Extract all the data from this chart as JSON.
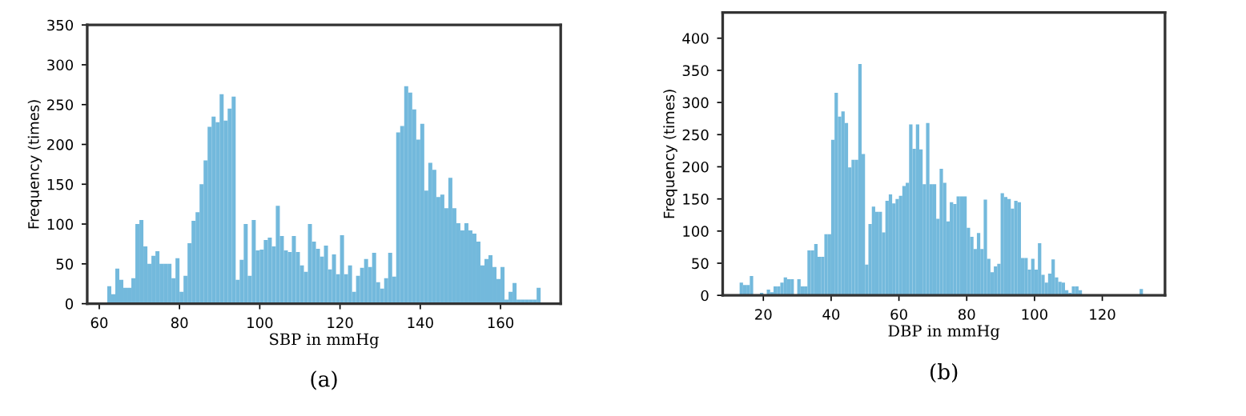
{
  "chart_data": [
    {
      "type": "histogram",
      "xlabel": "SBP in mmHg",
      "ylabel": "Frequency (times)",
      "color": "#73b9dc",
      "bins": [
        62,
        63,
        64,
        65,
        66,
        67,
        68,
        69,
        70,
        71,
        72,
        73,
        74,
        75,
        76,
        77,
        78,
        79,
        80,
        81,
        82,
        83,
        84,
        85,
        86,
        87,
        88,
        89,
        90,
        91,
        92,
        93,
        94,
        95,
        96,
        97,
        98,
        99,
        100,
        101,
        102,
        103,
        104,
        105,
        106,
        107,
        108,
        109,
        110,
        111,
        112,
        113,
        114,
        115,
        116,
        117,
        118,
        119,
        120,
        121,
        122,
        123,
        124,
        125,
        126,
        127,
        128,
        129,
        130,
        131,
        132,
        133,
        134,
        135,
        136,
        137,
        138,
        139,
        140,
        141,
        142,
        143,
        144,
        145,
        146,
        147,
        148,
        149,
        150,
        151,
        152,
        153,
        154,
        155,
        156,
        157,
        158,
        159,
        160,
        161,
        162,
        163,
        164,
        165,
        166,
        167,
        168,
        169,
        170
      ],
      "values": [
        22,
        12,
        44,
        30,
        20,
        20,
        32,
        100,
        105,
        72,
        50,
        60,
        66,
        50,
        50,
        50,
        32,
        57,
        15,
        35,
        76,
        104,
        115,
        150,
        180,
        222,
        235,
        228,
        263,
        230,
        245,
        260,
        30,
        55,
        100,
        35,
        105,
        67,
        68,
        80,
        83,
        72,
        123,
        85,
        67,
        65,
        85,
        65,
        48,
        40,
        100,
        78,
        69,
        59,
        73,
        43,
        62,
        37,
        86,
        37,
        48,
        15,
        35,
        45,
        56,
        46,
        64,
        27,
        19,
        32,
        64,
        34,
        215,
        223,
        273,
        265,
        244,
        206,
        226,
        142,
        177,
        168,
        134,
        137,
        120,
        158,
        120,
        101,
        92,
        101,
        92,
        88,
        78,
        48,
        56,
        61,
        46,
        31,
        46,
        5,
        15,
        26,
        5,
        5,
        5,
        5,
        5,
        20
      ],
      "xlim": [
        57,
        175
      ],
      "xticks": [
        60,
        80,
        100,
        120,
        140,
        160
      ],
      "ylim": [
        0,
        350
      ],
      "yticks": [
        0,
        50,
        100,
        150,
        200,
        250,
        300,
        350
      ],
      "grid": false,
      "annotations": [
        "(a)"
      ]
    },
    {
      "type": "histogram",
      "xlabel": "DBP in mmHg",
      "ylabel": "Frequency (times)",
      "color": "#73b9dc",
      "bins": [
        13,
        14,
        15,
        16,
        17,
        19,
        20,
        21,
        22,
        23,
        24,
        25,
        26,
        27,
        28,
        29,
        30,
        31,
        32,
        33,
        34,
        35,
        36,
        37,
        38,
        39,
        40,
        41,
        42,
        43,
        44,
        45,
        46,
        47,
        48,
        49,
        50,
        51,
        52,
        53,
        54,
        55,
        56,
        57,
        58,
        59,
        60,
        61,
        62,
        63,
        64,
        65,
        66,
        67,
        68,
        69,
        70,
        71,
        72,
        73,
        74,
        75,
        76,
        77,
        78,
        79,
        80,
        81,
        82,
        83,
        84,
        85,
        86,
        87,
        88,
        89,
        90,
        91,
        92,
        93,
        94,
        95,
        96,
        97,
        98,
        99,
        100,
        101,
        102,
        103,
        104,
        105,
        106,
        107,
        108,
        109,
        110,
        111,
        112,
        113,
        114,
        131,
        132
      ],
      "values": [
        20,
        16,
        16,
        30,
        0,
        4,
        0,
        9,
        5,
        14,
        14,
        20,
        28,
        25,
        25,
        0,
        25,
        14,
        14,
        70,
        70,
        80,
        60,
        60,
        95,
        95,
        242,
        315,
        278,
        286,
        268,
        199,
        211,
        211,
        360,
        220,
        48,
        111,
        138,
        130,
        130,
        98,
        147,
        157,
        143,
        150,
        155,
        170,
        175,
        266,
        228,
        266,
        227,
        173,
        268,
        173,
        173,
        119,
        197,
        175,
        115,
        145,
        142,
        154,
        154,
        154,
        105,
        91,
        72,
        97,
        72,
        149,
        57,
        36,
        45,
        49,
        159,
        153,
        150,
        135,
        147,
        145,
        58,
        58,
        40,
        57,
        40,
        81,
        32,
        20,
        34,
        56,
        28,
        21,
        20,
        8,
        4,
        14,
        14,
        8,
        0,
        10
      ],
      "xlim": [
        8,
        138.5
      ],
      "xticks": [
        20,
        40,
        60,
        80,
        100,
        120
      ],
      "ylim": [
        0,
        440
      ],
      "yticks": [
        0,
        50,
        100,
        150,
        200,
        250,
        300,
        350,
        400
      ],
      "grid": false,
      "annotations": [
        "(b)"
      ]
    }
  ]
}
